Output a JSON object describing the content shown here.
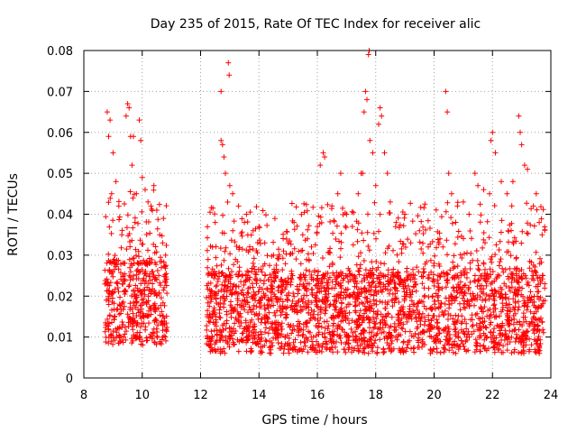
{
  "chart_data": {
    "type": "scatter",
    "title": "Day 235 of 2015, Rate Of TEC Index for receiver alic",
    "xlabel": "GPS time / hours",
    "ylabel": "ROTI / TECUs",
    "xlim": [
      8,
      24
    ],
    "ylim": [
      0,
      0.08
    ],
    "xticks": [
      8,
      10,
      12,
      14,
      16,
      18,
      20,
      22,
      24
    ],
    "xtick_labels": [
      "8",
      "10",
      "12",
      "14",
      "16",
      "18",
      "20",
      "22",
      "24"
    ],
    "yticks": [
      0,
      0.01,
      0.02,
      0.03,
      0.04,
      0.05,
      0.06,
      0.07,
      0.08
    ],
    "ytick_labels": [
      "0",
      "0.01",
      "0.02",
      "0.03",
      "0.04",
      "0.05",
      "0.06",
      "0.07",
      "0.08"
    ],
    "grid": true,
    "marker": "+",
    "color": "#ff0000",
    "series": [
      {
        "name": "ROTI",
        "segments": [
          {
            "x_range": [
              8.7,
              10.85
            ],
            "typical": [
              0.008,
              0.028
            ]
          },
          {
            "x_range": [
              12.2,
              23.8
            ],
            "typical": [
              0.006,
              0.025
            ]
          }
        ],
        "points": [
          [
            8.8,
            0.065
          ],
          [
            8.9,
            0.063
          ],
          [
            8.85,
            0.059
          ],
          [
            9.0,
            0.055
          ],
          [
            9.1,
            0.048
          ],
          [
            8.95,
            0.045
          ],
          [
            9.2,
            0.042
          ],
          [
            9.3,
            0.035
          ],
          [
            9.5,
            0.067
          ],
          [
            9.55,
            0.066
          ],
          [
            9.45,
            0.064
          ],
          [
            9.6,
            0.059
          ],
          [
            9.7,
            0.059
          ],
          [
            9.65,
            0.052
          ],
          [
            9.8,
            0.045
          ],
          [
            9.75,
            0.038
          ],
          [
            9.9,
            0.063
          ],
          [
            9.95,
            0.058
          ],
          [
            10.0,
            0.049
          ],
          [
            10.1,
            0.046
          ],
          [
            10.2,
            0.043
          ],
          [
            10.3,
            0.042
          ],
          [
            10.4,
            0.047
          ],
          [
            10.5,
            0.041
          ],
          [
            10.6,
            0.035
          ],
          [
            10.7,
            0.033
          ],
          [
            10.8,
            0.03
          ],
          [
            12.5,
            0.038
          ],
          [
            12.7,
            0.058
          ],
          [
            12.75,
            0.057
          ],
          [
            12.8,
            0.054
          ],
          [
            12.85,
            0.05
          ],
          [
            12.7,
            0.07
          ],
          [
            12.95,
            0.077
          ],
          [
            12.98,
            0.074
          ],
          [
            13.0,
            0.047
          ],
          [
            13.1,
            0.045
          ],
          [
            13.3,
            0.042
          ],
          [
            13.5,
            0.038
          ],
          [
            13.8,
            0.036
          ],
          [
            14.0,
            0.037
          ],
          [
            14.2,
            0.033
          ],
          [
            14.5,
            0.03
          ],
          [
            15.0,
            0.033
          ],
          [
            15.2,
            0.038
          ],
          [
            15.5,
            0.035
          ],
          [
            15.8,
            0.032
          ],
          [
            16.0,
            0.037
          ],
          [
            16.2,
            0.055
          ],
          [
            16.25,
            0.054
          ],
          [
            16.1,
            0.052
          ],
          [
            16.5,
            0.042
          ],
          [
            16.7,
            0.045
          ],
          [
            16.8,
            0.05
          ],
          [
            17.0,
            0.04
          ],
          [
            17.2,
            0.037
          ],
          [
            17.4,
            0.045
          ],
          [
            17.5,
            0.05
          ],
          [
            17.55,
            0.05
          ],
          [
            17.6,
            0.065
          ],
          [
            17.65,
            0.07
          ],
          [
            17.7,
            0.068
          ],
          [
            17.75,
            0.079
          ],
          [
            17.78,
            0.08
          ],
          [
            17.8,
            0.058
          ],
          [
            17.9,
            0.055
          ],
          [
            18.0,
            0.047
          ],
          [
            18.1,
            0.062
          ],
          [
            18.15,
            0.066
          ],
          [
            18.2,
            0.064
          ],
          [
            18.3,
            0.055
          ],
          [
            18.4,
            0.05
          ],
          [
            18.5,
            0.043
          ],
          [
            18.7,
            0.038
          ],
          [
            19.0,
            0.04
          ],
          [
            19.2,
            0.033
          ],
          [
            19.5,
            0.036
          ],
          [
            19.8,
            0.032
          ],
          [
            20.0,
            0.028
          ],
          [
            20.2,
            0.034
          ],
          [
            20.4,
            0.07
          ],
          [
            20.45,
            0.065
          ],
          [
            20.5,
            0.05
          ],
          [
            20.6,
            0.045
          ],
          [
            20.8,
            0.042
          ],
          [
            21.0,
            0.043
          ],
          [
            21.2,
            0.04
          ],
          [
            21.4,
            0.05
          ],
          [
            21.5,
            0.047
          ],
          [
            21.7,
            0.046
          ],
          [
            21.9,
            0.045
          ],
          [
            21.95,
            0.058
          ],
          [
            22.0,
            0.06
          ],
          [
            22.1,
            0.055
          ],
          [
            22.3,
            0.048
          ],
          [
            22.5,
            0.045
          ],
          [
            22.7,
            0.048
          ],
          [
            22.9,
            0.064
          ],
          [
            22.95,
            0.06
          ],
          [
            23.0,
            0.057
          ],
          [
            23.1,
            0.052
          ],
          [
            23.2,
            0.051
          ],
          [
            23.4,
            0.042
          ],
          [
            23.5,
            0.045
          ],
          [
            23.6,
            0.038
          ],
          [
            23.7,
            0.035
          ]
        ]
      }
    ]
  }
}
